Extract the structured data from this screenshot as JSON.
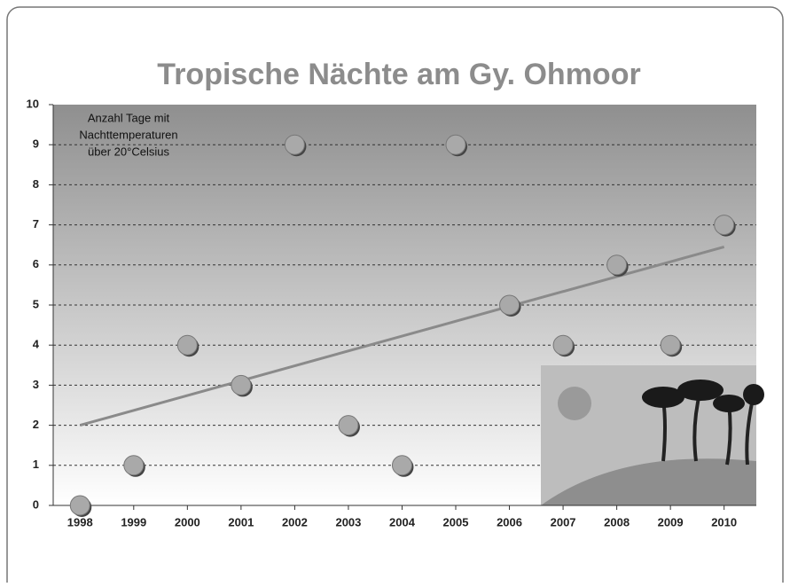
{
  "chart_data": {
    "type": "scatter",
    "title": "Tropische Nächte am Gy. Ohmoor",
    "annotation": [
      "Anzahl Tage mit",
      "Nachttemperaturen",
      "über 20°Celsius"
    ],
    "x": [
      1998,
      1999,
      2000,
      2001,
      2002,
      2003,
      2004,
      2005,
      2006,
      2007,
      2008,
      2009,
      2010
    ],
    "values": [
      0,
      1,
      4,
      3,
      9,
      2,
      1,
      9,
      5,
      4,
      6,
      4,
      7
    ],
    "color": "#a9a9a9",
    "trendline": {
      "x": [
        1998,
        2010
      ],
      "values": [
        2.0,
        6.45
      ],
      "color": "#8a8a8a"
    },
    "xlim": [
      1997.5,
      2010.6
    ],
    "xticks": [
      1998,
      1999,
      2000,
      2001,
      2002,
      2003,
      2004,
      2005,
      2006,
      2007,
      2008,
      2009,
      2010
    ],
    "ylim": [
      0,
      10
    ],
    "yticks": [
      0,
      1,
      2,
      3,
      4,
      5,
      6,
      7,
      8,
      9,
      10
    ],
    "grid": true
  }
}
